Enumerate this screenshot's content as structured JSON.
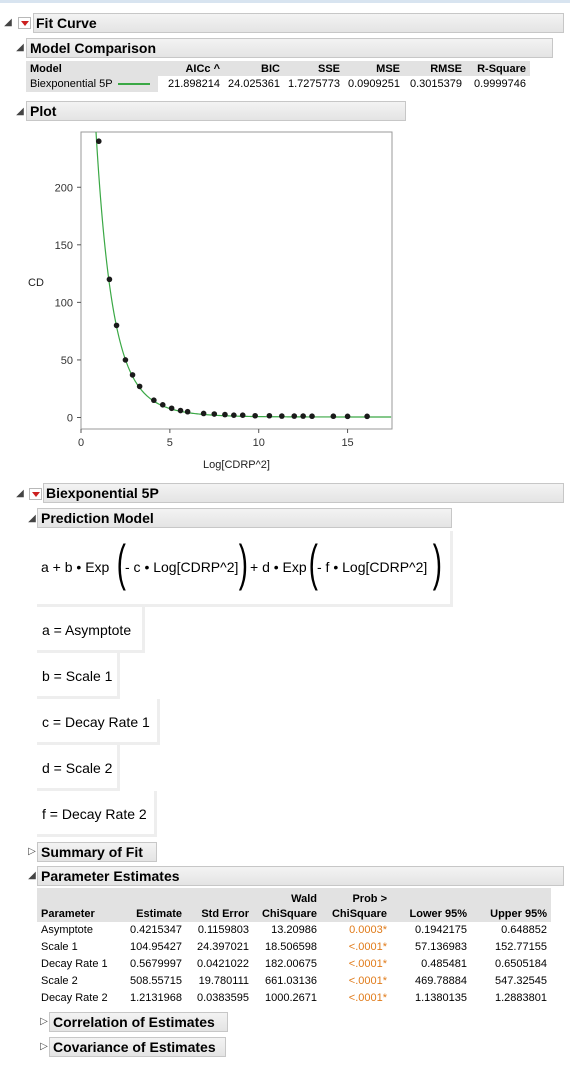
{
  "fit_curve": {
    "title": "Fit Curve"
  },
  "model_comparison": {
    "title": "Model Comparison",
    "headers": [
      "Model",
      "AICc ^",
      "BIC",
      "SSE",
      "MSE",
      "RMSE",
      "R-Square"
    ],
    "rows": [
      {
        "model": "Biexponential 5P",
        "aicc": "21.898214",
        "bic": "24.025361",
        "sse": "1.7275773",
        "mse": "0.0909251",
        "rmse": "0.3015379",
        "rsquare": "0.9999746",
        "line_color": "#3aa845"
      }
    ]
  },
  "plot": {
    "title": "Plot",
    "chart_data": {
      "type": "scatter",
      "title": "",
      "xlabel": "Log[CDRP^2]",
      "ylabel": "CD",
      "xlim": [
        0,
        17.5
      ],
      "ylim": [
        -10,
        248
      ],
      "xticks": [
        "0",
        "5",
        "10",
        "15"
      ],
      "xtick_values": [
        0,
        5,
        10,
        15
      ],
      "yticks": [
        "0",
        "50",
        "100",
        "150",
        "200"
      ],
      "ytick_values": [
        0,
        50,
        100,
        150,
        200
      ],
      "grid": false,
      "series": [
        {
          "points": [
            [
              1.0,
              240
            ],
            [
              1.6,
              120
            ],
            [
              2.0,
              80
            ],
            [
              2.5,
              50
            ],
            [
              2.9,
              37
            ],
            [
              3.3,
              27
            ],
            [
              4.1,
              15
            ],
            [
              4.6,
              11
            ],
            [
              5.1,
              8
            ],
            [
              5.6,
              6
            ],
            [
              6.0,
              5
            ],
            [
              6.9,
              3.5
            ],
            [
              7.5,
              3
            ],
            [
              8.1,
              2.5
            ],
            [
              8.6,
              2
            ],
            [
              9.1,
              2
            ],
            [
              9.8,
              1.5
            ],
            [
              10.6,
              1.5
            ],
            [
              11.3,
              1.2
            ],
            [
              12.0,
              1.2
            ],
            [
              12.5,
              1.2
            ],
            [
              13.0,
              1.1
            ],
            [
              14.2,
              1.1
            ],
            [
              15.0,
              1.0
            ],
            [
              16.1,
              1.0
            ]
          ],
          "marker_color": "#1a1a1a"
        }
      ],
      "fit_curve": {
        "model": "a + b*exp(-c*x) + d*exp(-f*x)",
        "params": {
          "a": 0.4215347,
          "b": 104.95427,
          "c": 0.5679997,
          "d": 508.55715,
          "f": 1.2131968
        },
        "color": "#3aa845"
      }
    }
  },
  "biexponential": {
    "title": "Biexponential 5P",
    "prediction_model": {
      "title": "Prediction Model",
      "formula": {
        "p1": "a + b • Exp",
        "inner1": "- c • Log[CDRP^2]",
        "mid": "+ d • Exp",
        "inner2": "- f • Log[CDRP^2]"
      },
      "params": [
        "a = Asymptote",
        "b = Scale 1",
        "c = Decay Rate 1",
        "d = Scale 2",
        "f = Decay Rate 2"
      ]
    },
    "summary_of_fit": {
      "title": "Summary of Fit"
    },
    "parameter_estimates": {
      "title": "Parameter Estimates",
      "headers": [
        {
          "top": "",
          "bottom": "Parameter"
        },
        {
          "top": "",
          "bottom": "Estimate"
        },
        {
          "top": "",
          "bottom": "Std Error"
        },
        {
          "top": "Wald",
          "bottom": "ChiSquare"
        },
        {
          "top": "Prob >",
          "bottom": "ChiSquare"
        },
        {
          "top": "",
          "bottom": "Lower 95%"
        },
        {
          "top": "",
          "bottom": "Upper 95%"
        }
      ],
      "rows": [
        {
          "param": "Asymptote",
          "est": "0.4215347",
          "se": "0.1159803",
          "chi": "13.20986",
          "prob": "0.0003*",
          "lo": "0.1942175",
          "hi": "0.648852"
        },
        {
          "param": "Scale 1",
          "est": "104.95427",
          "se": "24.397021",
          "chi": "18.506598",
          "prob": "<.0001*",
          "lo": "57.136983",
          "hi": "152.77155"
        },
        {
          "param": "Decay Rate 1",
          "est": "0.5679997",
          "se": "0.0421022",
          "chi": "182.00675",
          "prob": "<.0001*",
          "lo": "0.485481",
          "hi": "0.6505184"
        },
        {
          "param": "Scale 2",
          "est": "508.55715",
          "se": "19.780111",
          "chi": "661.03136",
          "prob": "<.0001*",
          "lo": "469.78884",
          "hi": "547.32545"
        },
        {
          "param": "Decay Rate 2",
          "est": "1.2131968",
          "se": "0.0383595",
          "chi": "1000.2671",
          "prob": "<.0001*",
          "lo": "1.1380135",
          "hi": "1.2883801"
        }
      ],
      "prob_color": "#e07b1a"
    },
    "correlation": {
      "title": "Correlation of Estimates"
    },
    "covariance": {
      "title": "Covariance of Estimates"
    }
  }
}
